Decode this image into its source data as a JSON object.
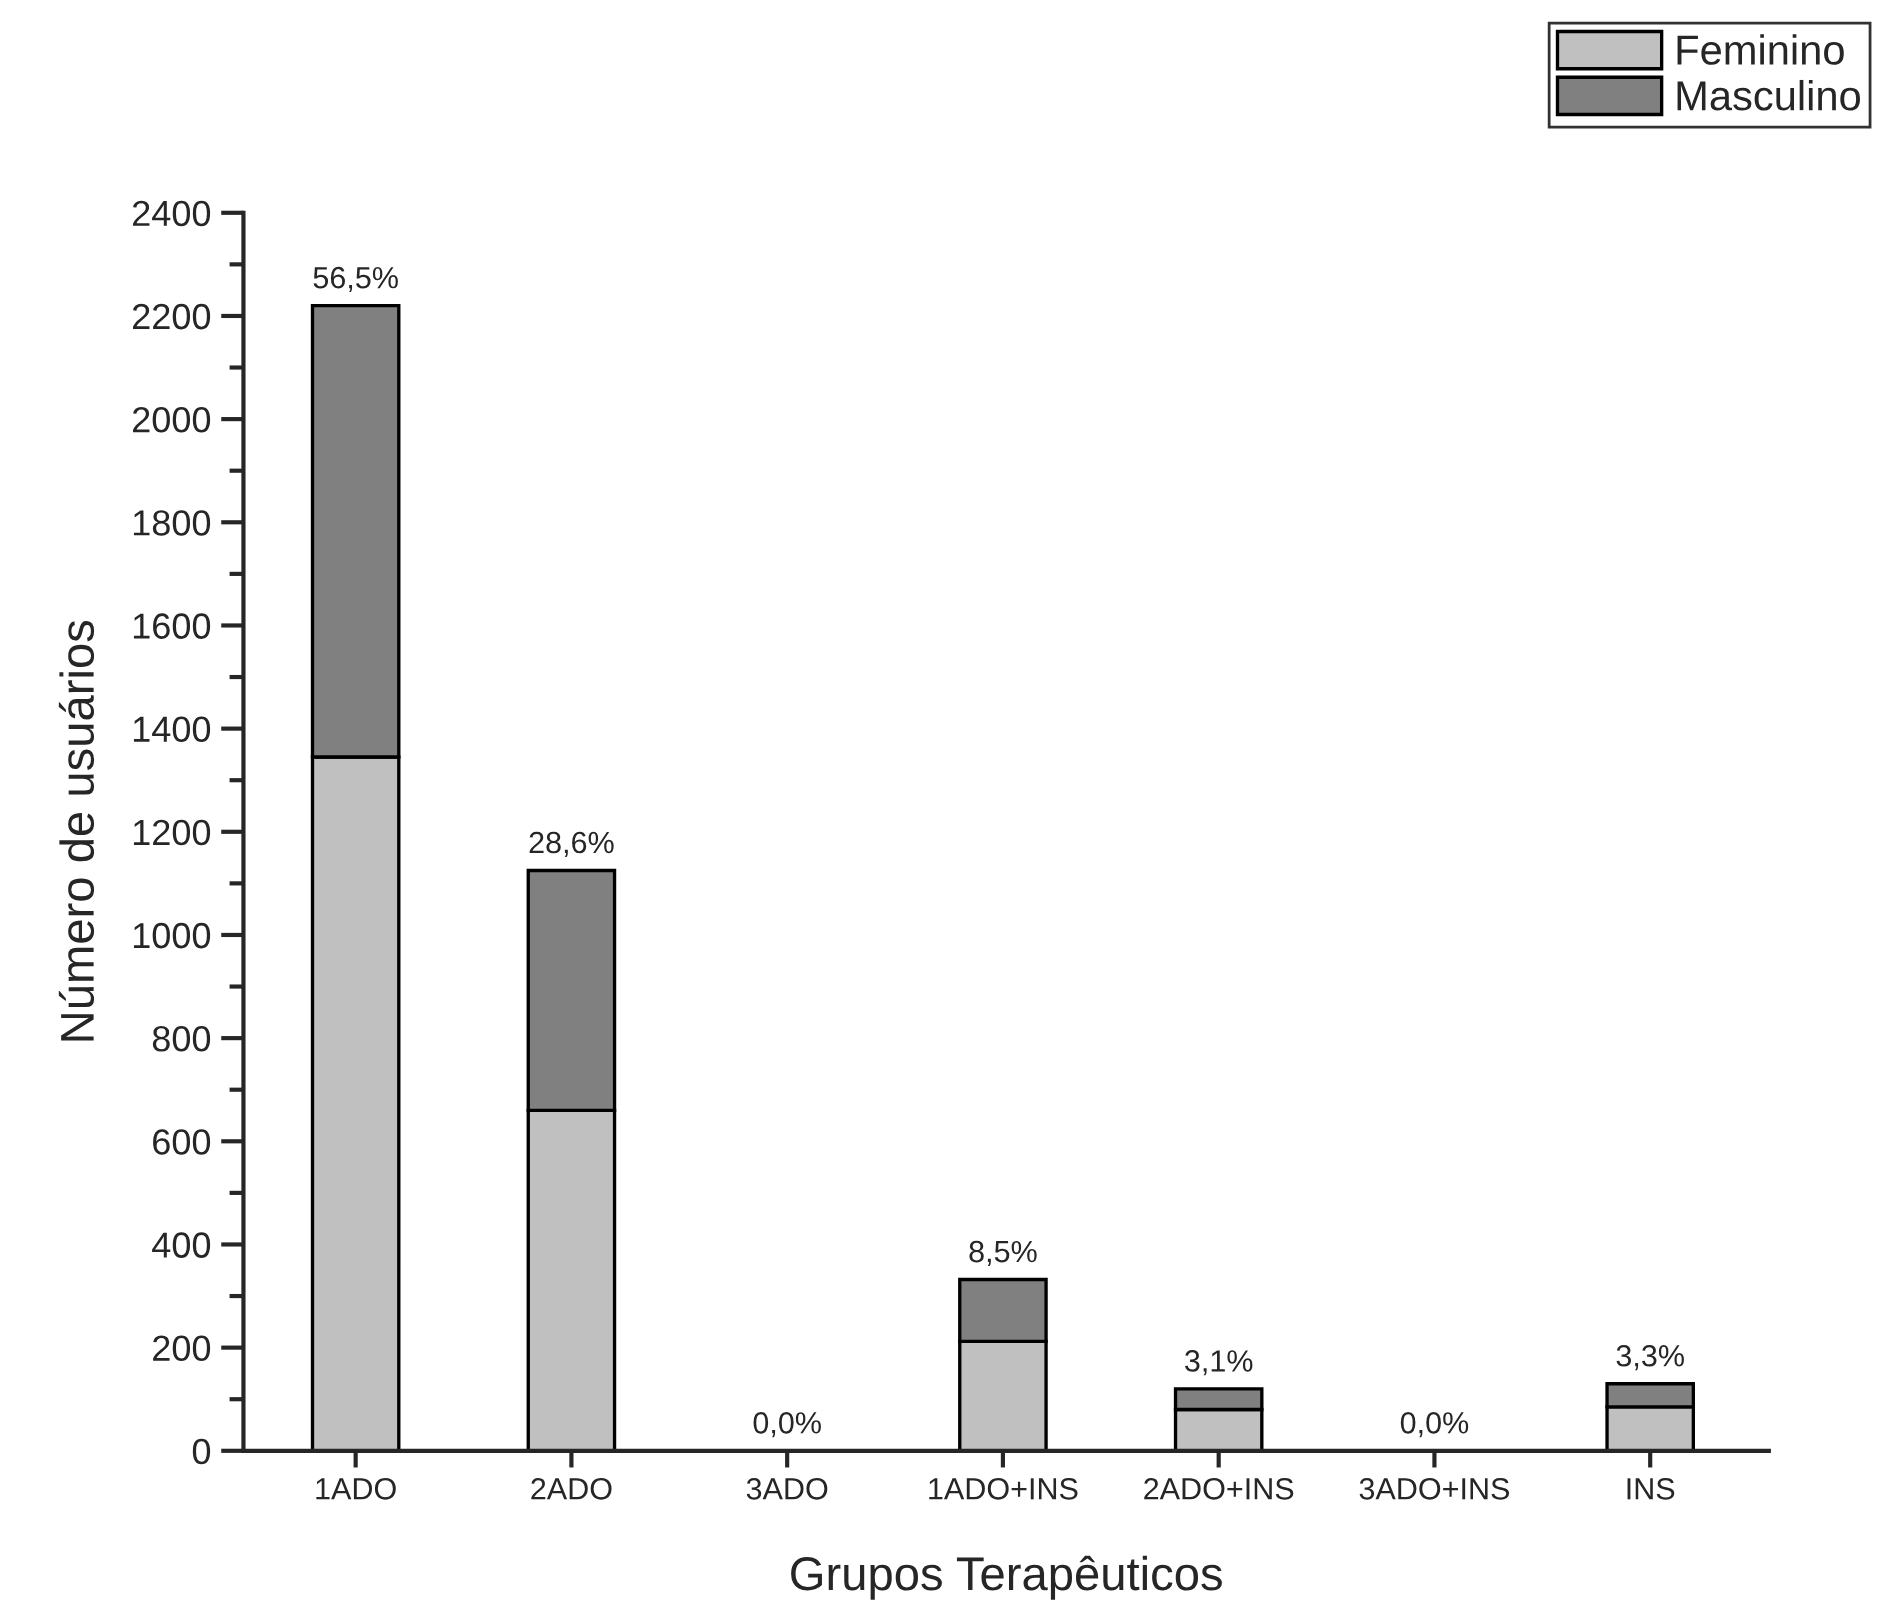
{
  "chart_data": {
    "type": "bar",
    "stacked": true,
    "xlabel": "Grupos Terapêuticos",
    "ylabel": "Número de usuários",
    "categories": [
      "1ADO",
      "2ADO",
      "3ADO",
      "1ADO+INS",
      "2ADO+INS",
      "3ADO+INS",
      "INS"
    ],
    "series": [
      {
        "name": "Feminino",
        "color": "#c0c0c0",
        "values": [
          1345,
          660,
          0,
          212,
          80,
          0,
          85
        ]
      },
      {
        "name": "Masculino",
        "color": "#808080",
        "values": [
          875,
          465,
          0,
          120,
          40,
          0,
          45
        ]
      }
    ],
    "annotations": [
      {
        "text": "56,5%",
        "x": "1ADO",
        "y": 2220
      },
      {
        "text": "28,6%",
        "x": "2ADO",
        "y": 1125
      },
      {
        "text": "0,0%",
        "x": "3ADO",
        "y": 0
      },
      {
        "text": "8,5%",
        "x": "1ADO+INS",
        "y": 332
      },
      {
        "text": "3,1%",
        "x": "2ADO+INS",
        "y": 120
      },
      {
        "text": "0,0%",
        "x": "3ADO+INS",
        "y": 0
      },
      {
        "text": "3,3%",
        "x": "INS",
        "y": 130
      }
    ],
    "ylim": [
      0,
      2400
    ],
    "yticks": [
      0,
      200,
      400,
      600,
      800,
      1000,
      1200,
      1400,
      1600,
      1800,
      2000,
      2200,
      2400
    ],
    "grid": false,
    "legend": "top right"
  }
}
